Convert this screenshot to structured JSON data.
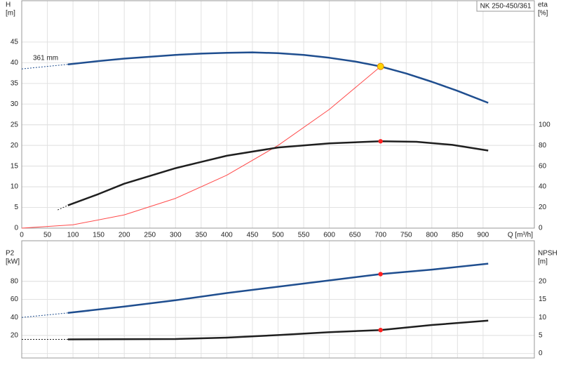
{
  "chart_data": [
    {
      "type": "line",
      "title": "NK 250-450/361",
      "annotations": [
        "361 mm"
      ],
      "ylabel": [
        "H",
        "[m]"
      ],
      "y2label": [
        "eta",
        "[%]"
      ],
      "xlabel": "Q [m³/h]",
      "xtick_labels": true,
      "xlim": [
        0,
        1000
      ],
      "xticks": [
        0,
        50,
        100,
        150,
        200,
        250,
        300,
        350,
        400,
        450,
        500,
        550,
        600,
        650,
        700,
        750,
        800,
        850,
        900
      ],
      "ylim": [
        0,
        55
      ],
      "yticks": [
        0,
        5,
        10,
        15,
        20,
        25,
        30,
        35,
        40,
        45
      ],
      "y2lim": [
        0,
        220
      ],
      "y2ticks": [
        0,
        20,
        40,
        60,
        80,
        100
      ],
      "grid": true,
      "series": [
        {
          "color": "#1f4e8f",
          "style": "dashed",
          "axis": "y",
          "x": [
            0,
            90
          ],
          "values": [
            38.5,
            39.6
          ]
        },
        {
          "color": "#1f4e8f",
          "style": "thick",
          "axis": "y",
          "x": [
            90,
            150,
            200,
            300,
            350,
            400,
            450,
            500,
            550,
            600,
            650,
            700,
            750,
            800,
            850,
            910
          ],
          "values": [
            39.6,
            40.4,
            41.0,
            41.9,
            42.2,
            42.4,
            42.5,
            42.3,
            41.9,
            41.2,
            40.3,
            39.1,
            37.4,
            35.4,
            33.2,
            30.3
          ]
        },
        {
          "color": "#ff4a4a",
          "style": "thin",
          "axis": "y",
          "x": [
            0,
            100,
            200,
            300,
            400,
            500,
            600,
            700
          ],
          "values": [
            0,
            0.8,
            3.2,
            7.2,
            12.8,
            20,
            28.7,
            39.1
          ]
        },
        {
          "color": "#1f1f1f",
          "style": "dashed",
          "axis": "y2",
          "x": [
            70,
            90
          ],
          "values": [
            17.6,
            22
          ]
        },
        {
          "color": "#1f1f1f",
          "style": "thick",
          "axis": "y2",
          "x": [
            90,
            150,
            200,
            300,
            350,
            400,
            500,
            600,
            700,
            770,
            840,
            910
          ],
          "values": [
            22,
            33,
            43,
            58,
            64,
            70,
            78,
            82,
            84,
            83.5,
            80.5,
            75
          ]
        },
        {
          "color": "#ffd400",
          "style": "point",
          "axis": "y",
          "x": [
            700
          ],
          "values": [
            39.1
          ]
        },
        {
          "color": "#ff2020",
          "style": "point",
          "axis": "y2",
          "x": [
            700
          ],
          "values": [
            84
          ]
        }
      ]
    },
    {
      "type": "line",
      "ylabel": [
        "P2",
        "[kW]"
      ],
      "y2label": [
        "NPSH",
        "[m]"
      ],
      "xtick_labels": false,
      "xlim": [
        0,
        1000
      ],
      "xticks": [
        0,
        50,
        100,
        150,
        200,
        250,
        300,
        350,
        400,
        450,
        500,
        550,
        600,
        650,
        700,
        750,
        800,
        850,
        900
      ],
      "ylim": [
        -5,
        125
      ],
      "yticks": [
        20,
        40,
        60,
        80
      ],
      "y2lim": [
        -1.25,
        31.25
      ],
      "y2ticks": [
        0,
        5,
        10,
        15,
        20
      ],
      "grid": true,
      "series": [
        {
          "color": "#1f4e8f",
          "style": "dashed",
          "axis": "y",
          "x": [
            0,
            90
          ],
          "values": [
            40,
            45
          ]
        },
        {
          "color": "#1f4e8f",
          "style": "thick",
          "axis": "y",
          "x": [
            90,
            200,
            300,
            400,
            500,
            600,
            700,
            800,
            910
          ],
          "values": [
            45,
            52,
            59,
            67,
            74,
            81,
            88,
            93,
            99.6
          ]
        },
        {
          "color": "#1f1f1f",
          "style": "dashed",
          "axis": "y2",
          "x": [
            0,
            90
          ],
          "values": [
            3.9,
            3.9
          ]
        },
        {
          "color": "#1f1f1f",
          "style": "thick",
          "axis": "y2",
          "x": [
            90,
            300,
            400,
            500,
            600,
            700,
            800,
            910
          ],
          "values": [
            3.9,
            4.0,
            4.4,
            5.1,
            5.9,
            6.5,
            7.9,
            9.1
          ]
        },
        {
          "color": "#ff2020",
          "style": "point",
          "axis": "y",
          "x": [
            700
          ],
          "values": [
            88
          ]
        },
        {
          "color": "#ff2020",
          "style": "point",
          "axis": "y2",
          "x": [
            700
          ],
          "values": [
            6.5
          ]
        }
      ]
    }
  ]
}
